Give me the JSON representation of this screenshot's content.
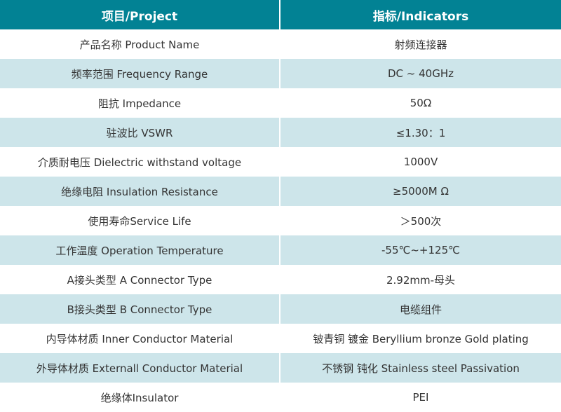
{
  "colors": {
    "header": "#028294",
    "row_alt": "#cde5ea"
  },
  "header": {
    "project": "项目/Project",
    "indicators": "指标/Indicators"
  },
  "rows": [
    {
      "project": "产品名称 Product Name",
      "value": "射频连接器"
    },
    {
      "project": "频率范围 Frequency Range",
      "value": "DC ~ 40GHz"
    },
    {
      "project": "阻抗 Impedance",
      "value": "50Ω"
    },
    {
      "project": "驻波比 VSWR",
      "value": "≤1.30：1"
    },
    {
      "project": "介质耐电压 Dielectric withstand voltage",
      "value": "1000V"
    },
    {
      "project": "绝缘电阻 Insulation Resistance",
      "value": "≥5000M Ω"
    },
    {
      "project": "使用寿命Service Life",
      "value": "＞500次"
    },
    {
      "project": "工作温度 Operation Temperature",
      "value": "-55℃~+125℃"
    },
    {
      "project": "A接头类型 A Connector Type",
      "value": "2.92mm-母头"
    },
    {
      "project": "B接头类型 B Connector Type",
      "value": "电缆组件"
    },
    {
      "project": "内导体材质 Inner Conductor Material",
      "value": "铍青铜 镀金 Beryllium bronze Gold plating"
    },
    {
      "project": "外导体材质 Externall Conductor Material",
      "value": "不锈钢 钝化 Stainless steel Passivation"
    },
    {
      "project": "绝缘体Insulator",
      "value": "PEI"
    }
  ]
}
